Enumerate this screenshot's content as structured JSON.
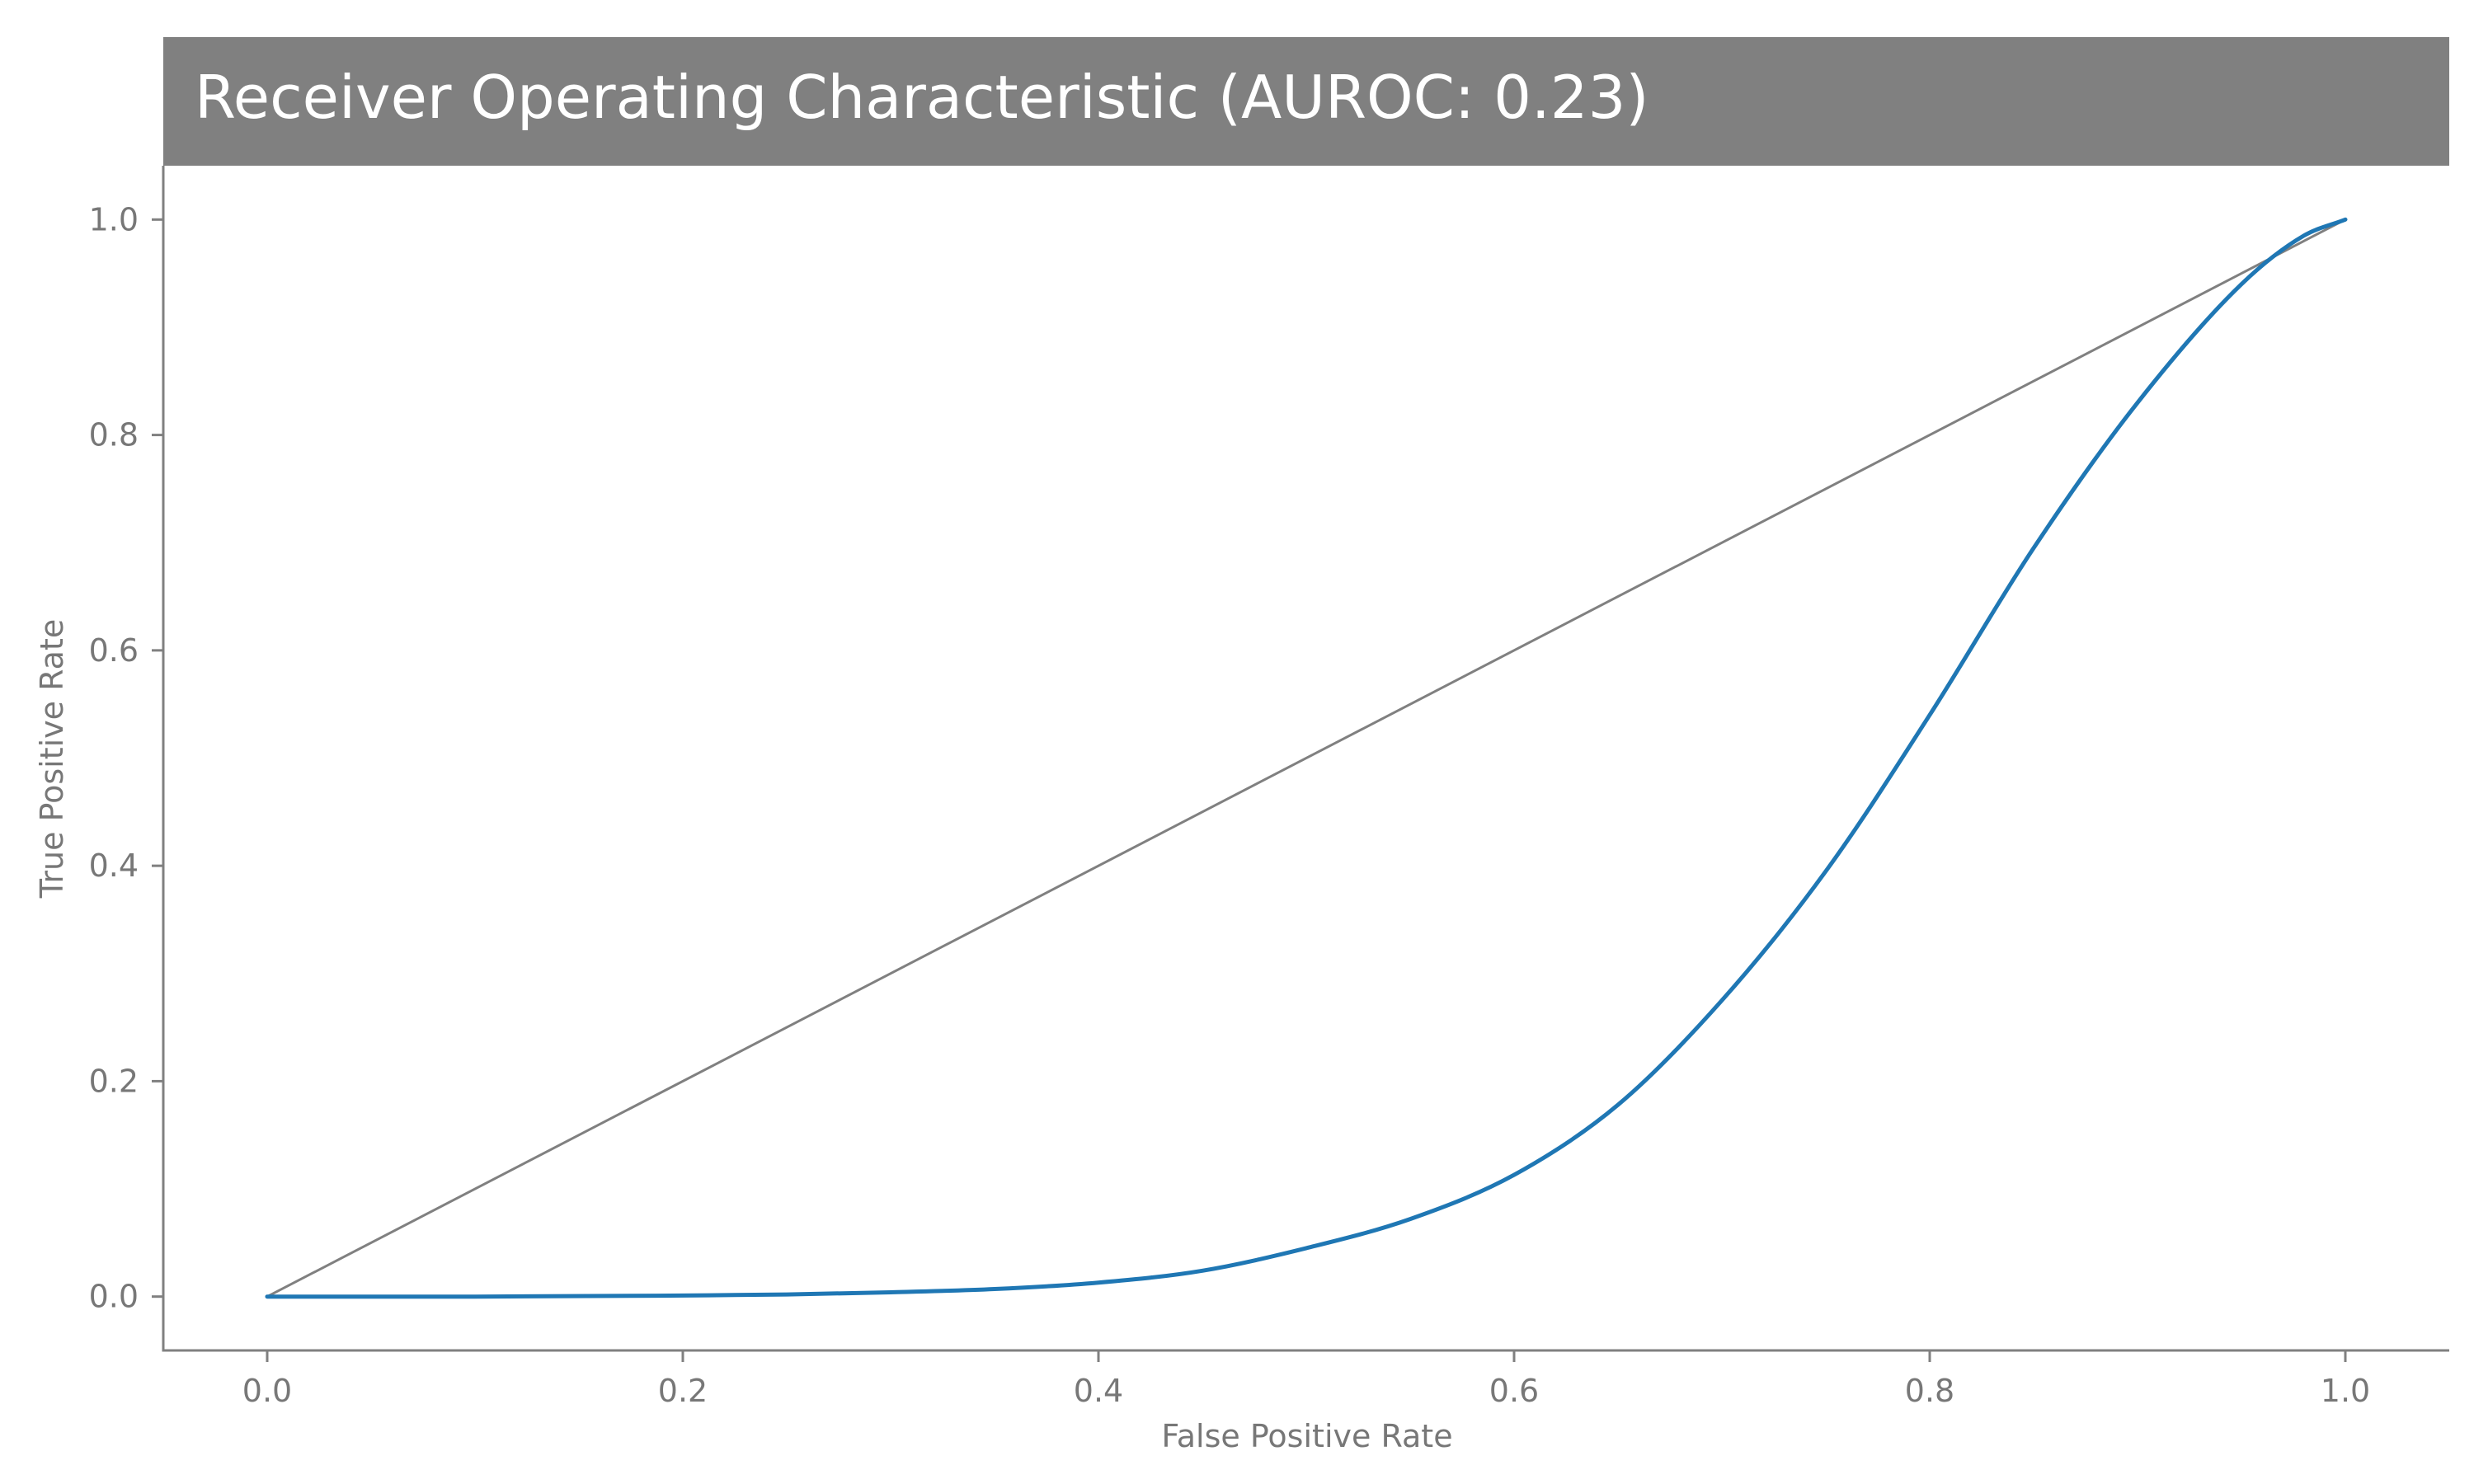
{
  "chart_data": {
    "type": "line",
    "title": "Receiver Operating Characteristic (AUROC: 0.23)",
    "xlabel": "False Positive Rate",
    "ylabel": "True Positive Rate",
    "xlim": [
      -0.05,
      1.05
    ],
    "ylim": [
      -0.05,
      1.05
    ],
    "xticks": [
      "0.0",
      "0.2",
      "0.4",
      "0.6",
      "0.8",
      "1.0"
    ],
    "yticks": [
      "0.0",
      "0.2",
      "0.4",
      "0.6",
      "0.8",
      "1.0"
    ],
    "grid": false,
    "legend": "none",
    "colors": {
      "title_bg": "#808080",
      "roc": "#1f77b4",
      "diagonal": "#808080"
    },
    "series": [
      {
        "x": [
          0.0,
          0.1,
          0.2,
          0.25,
          0.3,
          0.35,
          0.4,
          0.45,
          0.5,
          0.55,
          0.6,
          0.65,
          0.7,
          0.75,
          0.8,
          0.85,
          0.9,
          0.95,
          0.98,
          1.0
        ],
        "y": [
          0.0,
          0.0,
          0.001,
          0.002,
          0.004,
          0.007,
          0.013,
          0.024,
          0.045,
          0.072,
          0.113,
          0.178,
          0.275,
          0.395,
          0.54,
          0.695,
          0.83,
          0.94,
          0.985,
          1.0
        ]
      },
      {
        "x": [
          0.0,
          1.0
        ],
        "y": [
          0.0,
          1.0
        ]
      }
    ]
  }
}
